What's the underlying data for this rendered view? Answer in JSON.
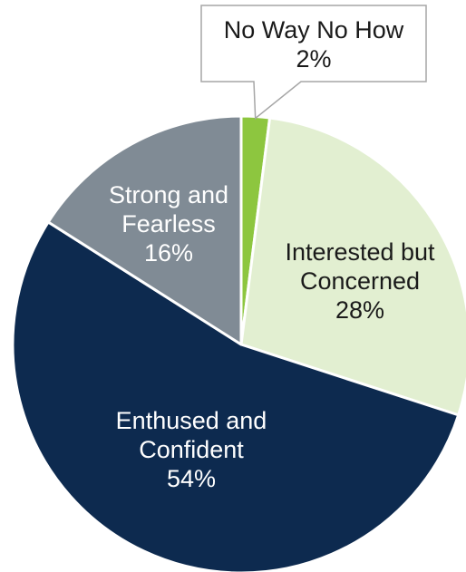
{
  "chart_data": {
    "type": "pie",
    "slices": [
      {
        "name": "No Way No How",
        "label_lines": [
          "No Way No How",
          "2%"
        ],
        "value": 2,
        "color": "#8dc63f",
        "label_color": "#1a1a1a"
      },
      {
        "name": "Interested but Concerned",
        "label_lines": [
          "Interested but",
          "Concerned",
          "28%"
        ],
        "value": 28,
        "color": "#e2efd1",
        "label_color": "#1a1a1a"
      },
      {
        "name": "Enthused and Confident",
        "label_lines": [
          "Enthused and",
          "Confident",
          "54%"
        ],
        "value": 54,
        "color": "#0d2a4f",
        "label_color": "#ffffff"
      },
      {
        "name": "Strong and Fearless",
        "label_lines": [
          "Strong and",
          "Fearless",
          "16%"
        ],
        "value": 16,
        "color": "#808b95",
        "label_color": "#ffffff"
      }
    ],
    "start_angle_deg": 0,
    "direction": "clockwise",
    "callout_slice": "No Way No How"
  }
}
